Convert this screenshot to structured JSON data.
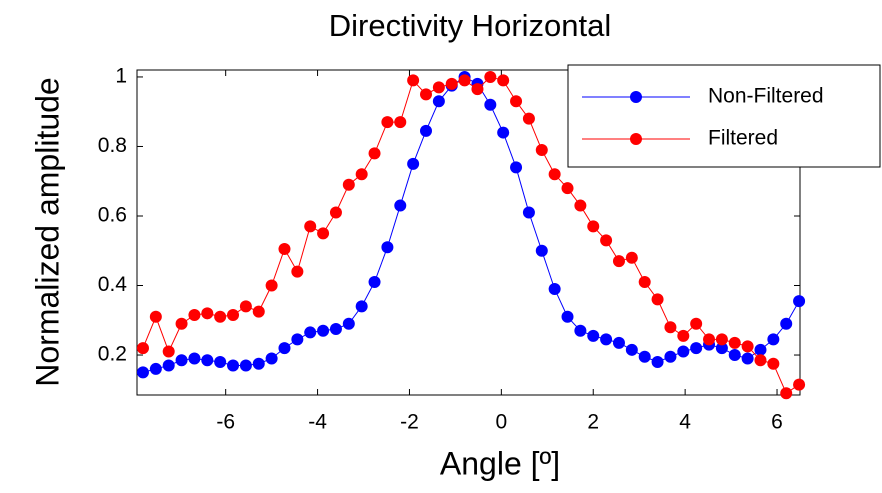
{
  "chart_data": {
    "type": "line",
    "title": "Directivity Horizontal",
    "x_label": "Angle [º]",
    "y_label": "Normalized amplitude",
    "x": [
      -7.8,
      -7.52,
      -7.24,
      -6.96,
      -6.68,
      -6.4,
      -6.12,
      -5.84,
      -5.56,
      -5.28,
      -5.0,
      -4.72,
      -4.44,
      -4.16,
      -3.88,
      -3.6,
      -3.32,
      -3.04,
      -2.76,
      -2.48,
      -2.2,
      -1.92,
      -1.64,
      -1.36,
      -1.08,
      -0.8,
      -0.52,
      -0.24,
      0.04,
      0.32,
      0.6,
      0.88,
      1.16,
      1.44,
      1.72,
      2.0,
      2.28,
      2.56,
      2.84,
      3.12,
      3.4,
      3.68,
      3.96,
      4.24,
      4.52,
      4.8,
      5.08,
      5.36,
      5.64,
      5.92,
      6.2,
      6.48
    ],
    "series": [
      {
        "name": "Non-Filtered",
        "color": "#0000ff",
        "values": [
          0.15,
          0.16,
          0.17,
          0.185,
          0.19,
          0.185,
          0.18,
          0.17,
          0.17,
          0.175,
          0.19,
          0.22,
          0.245,
          0.265,
          0.27,
          0.275,
          0.29,
          0.34,
          0.41,
          0.51,
          0.63,
          0.75,
          0.845,
          0.93,
          0.975,
          1.0,
          0.98,
          0.92,
          0.84,
          0.74,
          0.61,
          0.5,
          0.39,
          0.31,
          0.27,
          0.255,
          0.245,
          0.235,
          0.215,
          0.195,
          0.18,
          0.195,
          0.21,
          0.22,
          0.23,
          0.22,
          0.2,
          0.19,
          0.215,
          0.245,
          0.29,
          0.355
        ]
      },
      {
        "name": "Filtered",
        "color": "#ff0000",
        "values": [
          0.22,
          0.31,
          0.21,
          0.29,
          0.315,
          0.32,
          0.31,
          0.315,
          0.34,
          0.325,
          0.4,
          0.505,
          0.44,
          0.57,
          0.55,
          0.61,
          0.69,
          0.72,
          0.78,
          0.87,
          0.87,
          0.99,
          0.95,
          0.97,
          0.98,
          0.99,
          0.965,
          1.0,
          0.99,
          0.93,
          0.88,
          0.79,
          0.72,
          0.68,
          0.63,
          0.57,
          0.53,
          0.47,
          0.48,
          0.41,
          0.36,
          0.28,
          0.255,
          0.29,
          0.245,
          0.245,
          0.235,
          0.225,
          0.185,
          0.175,
          0.09,
          0.115
        ]
      }
    ],
    "xlim": [
      -7.93,
      6.5
    ],
    "ylim": [
      0.085,
      1.02
    ],
    "xticks": [
      -6,
      -4,
      -2,
      0,
      2,
      4,
      6
    ],
    "yticks": [
      0.2,
      0.4,
      0.6,
      0.8,
      1
    ],
    "legend": "northeast",
    "grid": false
  }
}
